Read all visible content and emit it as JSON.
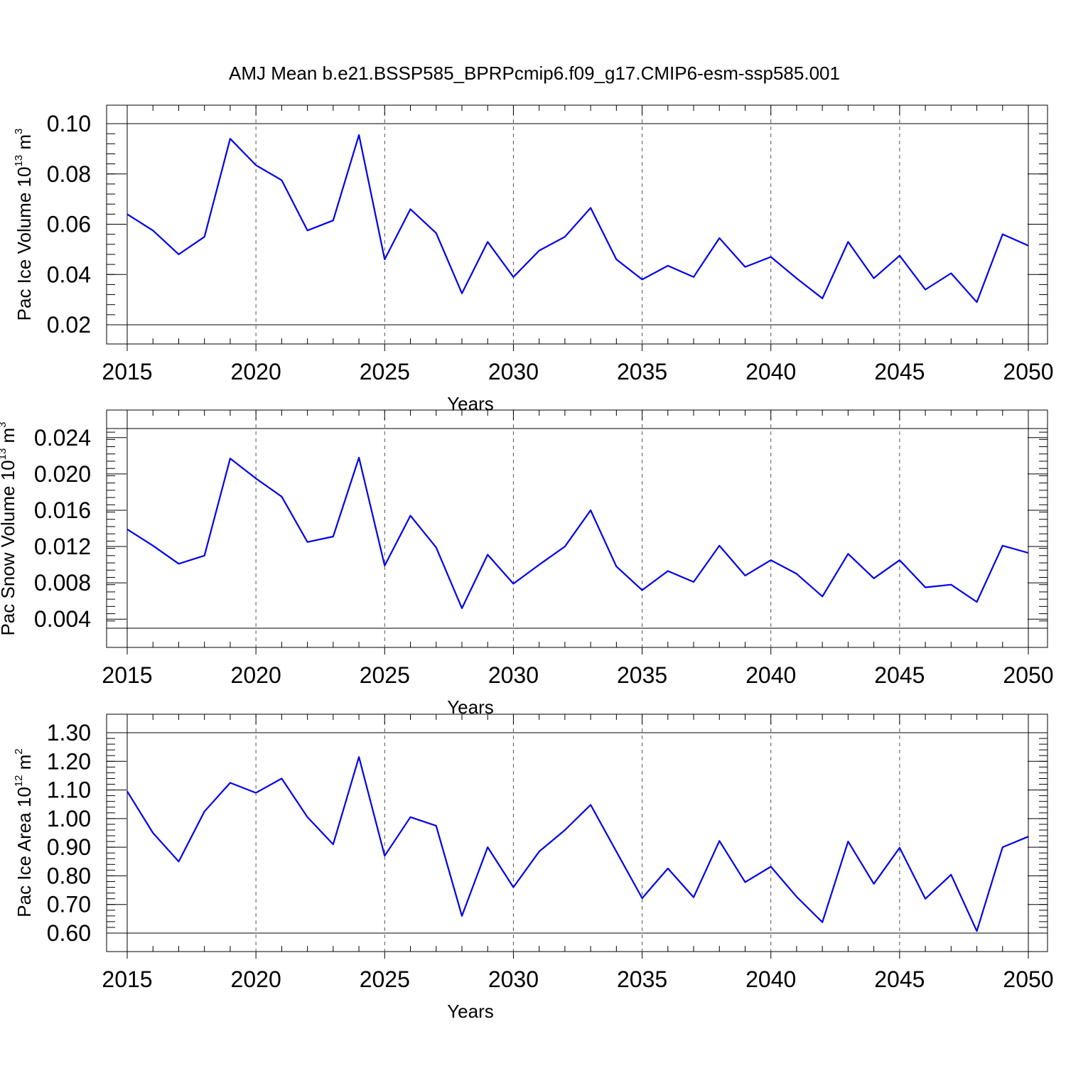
{
  "title": "AMJ Mean b.e21.BSSP585_BPRPcmip6.f09_g17.CMIP6-esm-ssp585.001",
  "colors": {
    "series": "#0000ee",
    "grid": "#555555",
    "axes": "#000000"
  },
  "chart_data": [
    {
      "type": "line",
      "ylabel_main": "Pac Ice Volume 10",
      "ylabel_exp1": "13",
      "ylabel_unit": " m",
      "ylabel_exp2": "3",
      "xlabel": "Years",
      "xlim": [
        2015,
        2050
      ],
      "ylim": [
        0.02,
        0.1
      ],
      "yticks": [
        0.02,
        0.04,
        0.06,
        0.08,
        0.1
      ],
      "yticklabels": [
        "0.02",
        "0.04",
        "0.06",
        "0.08",
        "0.10"
      ],
      "xticks": [
        2015,
        2020,
        2025,
        2030,
        2035,
        2040,
        2045,
        2050
      ],
      "xticklabels": [
        "2015",
        "2020",
        "2025",
        "2030",
        "2035",
        "2040",
        "2045",
        "2050"
      ],
      "grid": "vertical dashed at labeled years",
      "x": [
        2015,
        2016,
        2017,
        2018,
        2019,
        2020,
        2021,
        2022,
        2023,
        2024,
        2025,
        2026,
        2027,
        2028,
        2029,
        2030,
        2031,
        2032,
        2033,
        2034,
        2035,
        2036,
        2037,
        2038,
        2039,
        2040,
        2041,
        2042,
        2043,
        2044,
        2045,
        2046,
        2047,
        2048,
        2049,
        2050
      ],
      "values": [
        0.064,
        0.0575,
        0.048,
        0.055,
        0.094,
        0.0835,
        0.0775,
        0.0575,
        0.0615,
        0.0955,
        0.046,
        0.066,
        0.0565,
        0.0325,
        0.053,
        0.039,
        0.0495,
        0.055,
        0.0665,
        0.046,
        0.038,
        0.0435,
        0.039,
        0.0545,
        0.043,
        0.047,
        0.0385,
        0.0305,
        0.053,
        0.0385,
        0.0475,
        0.034,
        0.0405,
        0.029,
        0.056,
        0.0515
      ]
    },
    {
      "type": "line",
      "ylabel_main": "Pac Snow Volume 10",
      "ylabel_exp1": "13",
      "ylabel_unit": " m",
      "ylabel_exp2": "3",
      "xlabel": "Years",
      "xlim": [
        2015,
        2050
      ],
      "ylim": [
        0.003,
        0.025
      ],
      "yticks": [
        0.004,
        0.008,
        0.012,
        0.016,
        0.02,
        0.024
      ],
      "yticklabels": [
        "0.004",
        "0.008",
        "0.012",
        "0.016",
        "0.020",
        "0.024"
      ],
      "xticks": [
        2015,
        2020,
        2025,
        2030,
        2035,
        2040,
        2045,
        2050
      ],
      "xticklabels": [
        "2015",
        "2020",
        "2025",
        "2030",
        "2035",
        "2040",
        "2045",
        "2050"
      ],
      "grid": "vertical dashed at labeled years",
      "x": [
        2015,
        2016,
        2017,
        2018,
        2019,
        2020,
        2021,
        2022,
        2023,
        2024,
        2025,
        2026,
        2027,
        2028,
        2029,
        2030,
        2031,
        2032,
        2033,
        2034,
        2035,
        2036,
        2037,
        2038,
        2039,
        2040,
        2041,
        2042,
        2043,
        2044,
        2045,
        2046,
        2047,
        2048,
        2049,
        2050
      ],
      "values": [
        0.0139,
        0.0121,
        0.0101,
        0.011,
        0.0217,
        0.0195,
        0.0175,
        0.0125,
        0.0131,
        0.0218,
        0.0099,
        0.0154,
        0.0119,
        0.0052,
        0.0111,
        0.0079,
        0.01,
        0.012,
        0.016,
        0.0098,
        0.0072,
        0.0093,
        0.0081,
        0.0121,
        0.0088,
        0.0105,
        0.009,
        0.0065,
        0.0112,
        0.0085,
        0.0105,
        0.0075,
        0.0078,
        0.0059,
        0.0121,
        0.0113
      ]
    },
    {
      "type": "line",
      "ylabel_main": "Pac Ice Area 10",
      "ylabel_exp1": "12",
      "ylabel_unit": " m",
      "ylabel_exp2": "2",
      "xlabel": "Years",
      "xlim": [
        2015,
        2050
      ],
      "ylim": [
        0.6,
        1.3
      ],
      "yticks": [
        0.6,
        0.7,
        0.8,
        0.9,
        1.0,
        1.1,
        1.2,
        1.3
      ],
      "yticklabels": [
        "0.60",
        "0.70",
        "0.80",
        "0.90",
        "1.00",
        "1.10",
        "1.20",
        "1.30"
      ],
      "xticks": [
        2015,
        2020,
        2025,
        2030,
        2035,
        2040,
        2045,
        2050
      ],
      "xticklabels": [
        "2015",
        "2020",
        "2025",
        "2030",
        "2035",
        "2040",
        "2045",
        "2050"
      ],
      "grid": "vertical dashed at labeled years",
      "x": [
        2015,
        2016,
        2017,
        2018,
        2019,
        2020,
        2021,
        2022,
        2023,
        2024,
        2025,
        2026,
        2027,
        2028,
        2029,
        2030,
        2031,
        2032,
        2033,
        2034,
        2035,
        2036,
        2037,
        2038,
        2039,
        2040,
        2041,
        2042,
        2043,
        2044,
        2045,
        2046,
        2047,
        2048,
        2049,
        2050
      ],
      "values": [
        1.095,
        0.95,
        0.85,
        1.025,
        1.125,
        1.09,
        1.14,
        1.005,
        0.91,
        1.215,
        0.87,
        1.005,
        0.975,
        0.66,
        0.9,
        0.76,
        0.885,
        0.96,
        1.048,
        0.885,
        0.722,
        0.826,
        0.725,
        0.922,
        0.778,
        0.832,
        0.727,
        0.638,
        0.92,
        0.772,
        0.898,
        0.72,
        0.804,
        0.607,
        0.9,
        0.937
      ]
    }
  ]
}
